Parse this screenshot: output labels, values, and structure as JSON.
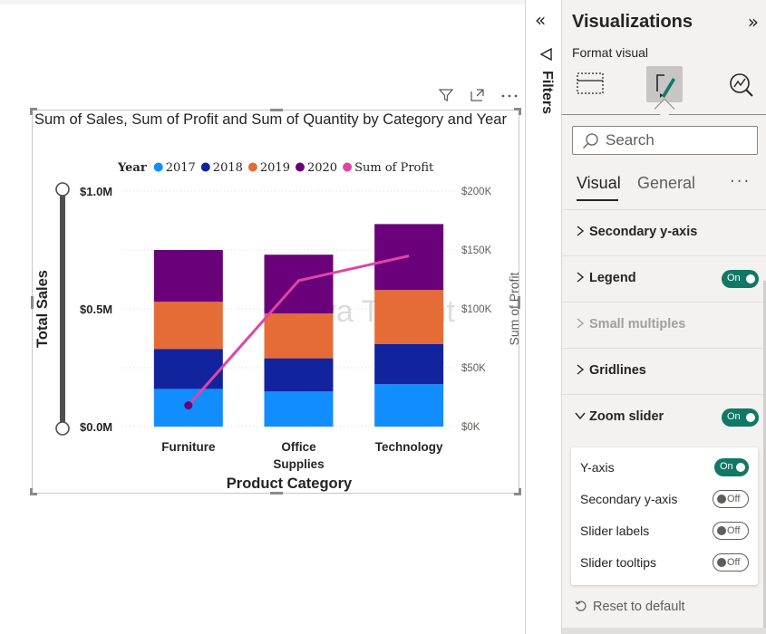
{
  "canvas": {
    "header_icons": [
      "filter-icon",
      "focus-mode-icon",
      "more-options-icon"
    ]
  },
  "visual": {
    "title": "Sum of Sales, Sum of Profit and Sum of Quantity by Category and Year",
    "watermark": "Java T point",
    "legend_title": "Year",
    "left_axis_title": "Total Sales",
    "right_axis_title": "Sum of Profit",
    "x_axis_title": "Product Category"
  },
  "chart_data": {
    "type": "bar",
    "stacked": true,
    "title": "Sum of Sales, Sum of Profit and Sum of Quantity by Category and Year",
    "categories": [
      "Furniture",
      "Office Supplies",
      "Technology"
    ],
    "category_labels": [
      [
        "Furniture"
      ],
      [
        "Office",
        "Supplies"
      ],
      [
        "Technology"
      ]
    ],
    "series": [
      {
        "name": "2017",
        "color": "#118DFF",
        "values": [
          0.16,
          0.15,
          0.18
        ]
      },
      {
        "name": "2018",
        "color": "#12239E",
        "values": [
          0.17,
          0.14,
          0.17
        ]
      },
      {
        "name": "2019",
        "color": "#E66C37",
        "values": [
          0.2,
          0.19,
          0.23
        ]
      },
      {
        "name": "2020",
        "color": "#6B007B",
        "values": [
          0.22,
          0.25,
          0.28
        ]
      }
    ],
    "line_series": {
      "name": "Sum of Profit",
      "color": "#E044A7",
      "axis": "right",
      "values": [
        18000,
        124000,
        145000
      ]
    },
    "xlabel": "Product Category",
    "ylabel": "Total Sales",
    "y2label": "Sum of Profit",
    "ylim": [
      0,
      1.0
    ],
    "y2lim": [
      0,
      200000
    ],
    "y_ticks": [
      "$0.0M",
      "$0.5M",
      "$1.0M"
    ],
    "y2_ticks": [
      "$0K",
      "$50K",
      "$100K",
      "$150K",
      "$200K"
    ],
    "legend_position": "top",
    "grid": true,
    "zoom_slider": true
  },
  "filters": {
    "collapse_glyph": "«",
    "label": "Filters"
  },
  "pane": {
    "title": "Visualizations",
    "expand_glyph": "»",
    "subtitle": "Format visual",
    "format_icons": [
      "build-visual-icon",
      "format-visual-icon",
      "analytics-icon"
    ],
    "search_placeholder": "Search",
    "tabs": [
      "Visual",
      "General"
    ],
    "more": "···",
    "sections": [
      {
        "label": "Secondary y-axis",
        "toggle": null,
        "expanded": false,
        "disabled": false
      },
      {
        "label": "Legend",
        "toggle": "On",
        "expanded": false,
        "disabled": false
      },
      {
        "label": "Small multiples",
        "toggle": null,
        "expanded": false,
        "disabled": true
      },
      {
        "label": "Gridlines",
        "toggle": null,
        "expanded": false,
        "disabled": false
      },
      {
        "label": "Zoom slider",
        "toggle": "On",
        "expanded": true,
        "disabled": false
      }
    ],
    "zoom_options": [
      {
        "label": "Y-axis",
        "state": "On"
      },
      {
        "label": "Secondary y-axis",
        "state": "Off"
      },
      {
        "label": "Slider labels",
        "state": "Off"
      },
      {
        "label": "Slider tooltips",
        "state": "Off"
      }
    ],
    "reset": "Reset to default"
  },
  "colors": {
    "toggle_on": "#117865",
    "pane_bg": "#F3F2F1"
  }
}
